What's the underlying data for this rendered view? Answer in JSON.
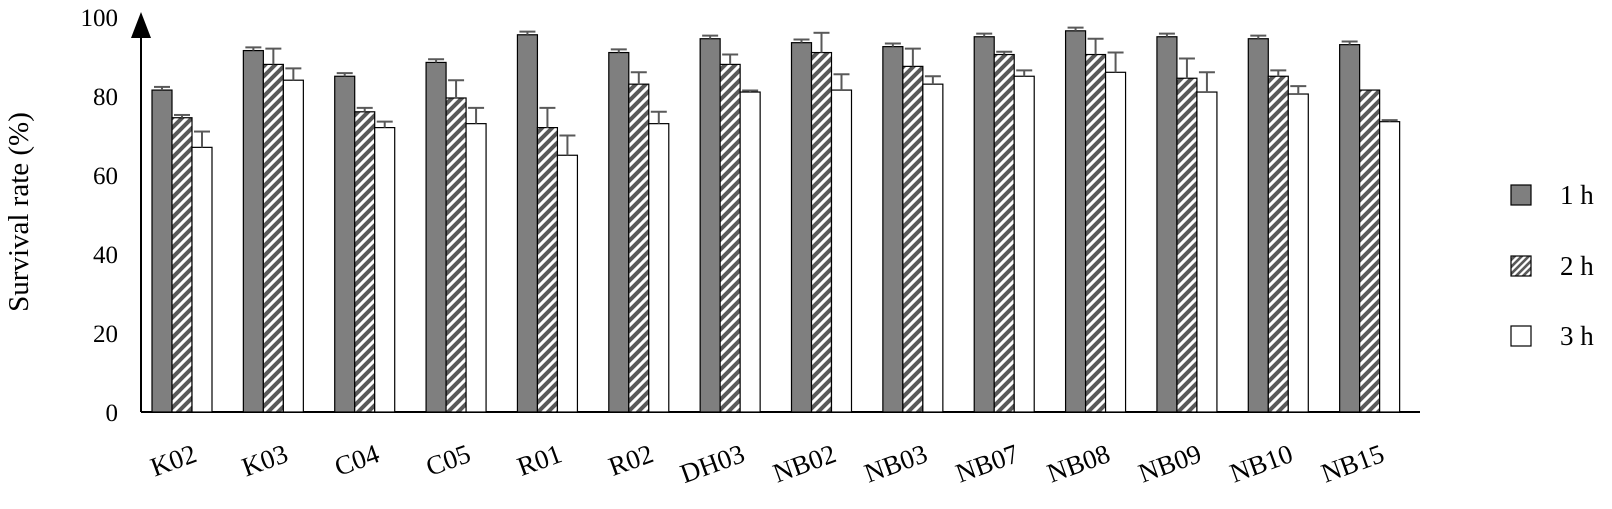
{
  "chart_data": {
    "type": "bar",
    "title": "",
    "xlabel": "",
    "ylabel": "Survival rate (%)",
    "ylim": [
      0,
      100
    ],
    "yticks": [
      "0",
      "20",
      "40",
      "60",
      "80",
      "100"
    ],
    "grid": false,
    "legend_position": "right",
    "categories": [
      "K02",
      "K03",
      "C04",
      "C05",
      "R01",
      "R02",
      "DH03",
      "NB02",
      "NB03",
      "NB07",
      "NB08",
      "NB09",
      "NB10",
      "NB15"
    ],
    "series": [
      {
        "name": "1 h",
        "pattern": "solid-gray",
        "color": "#7f7f7f",
        "values": [
          81.5,
          91.5,
          85,
          88.5,
          95.5,
          91,
          94.5,
          93.5,
          92.5,
          95,
          96.5,
          95,
          94.5,
          93
        ],
        "errors": [
          0.8,
          0.8,
          0.8,
          0.8,
          0.8,
          0.8,
          0.8,
          0.8,
          0.8,
          0.8,
          0.8,
          0.8,
          0.8,
          0.8
        ]
      },
      {
        "name": "2 h",
        "pattern": "diagonal-hatch",
        "color": "#595959",
        "values": [
          74.5,
          88,
          76,
          79.5,
          72,
          83,
          88,
          91,
          87.5,
          90.5,
          90.5,
          84.5,
          85,
          81.5
        ],
        "errors": [
          0.7,
          4.0,
          1.0,
          4.5,
          5.0,
          3.0,
          2.5,
          5.0,
          4.5,
          0.7,
          4.0,
          5.0,
          1.5,
          0
        ]
      },
      {
        "name": "3 h",
        "pattern": "white",
        "color": "#ffffff",
        "values": [
          67,
          84,
          72,
          73,
          65,
          73,
          81,
          81.5,
          83,
          85,
          86,
          81,
          80.5,
          73.5
        ],
        "errors": [
          4.0,
          3.0,
          1.5,
          4.0,
          5.0,
          3.0,
          0.4,
          4.0,
          2.0,
          1.5,
          5.0,
          5.0,
          2.0,
          0.4
        ]
      }
    ]
  }
}
